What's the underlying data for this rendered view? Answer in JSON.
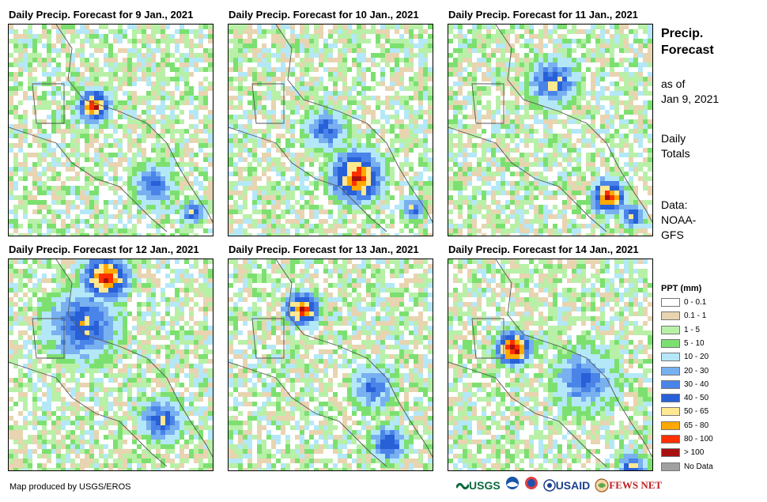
{
  "panels": [
    {
      "title": "Daily Precip. Forecast for 9 Jan., 2021"
    },
    {
      "title": "Daily Precip. Forecast for 10 Jan., 2021"
    },
    {
      "title": "Daily Precip. Forecast for 11 Jan., 2021"
    },
    {
      "title": "Daily Precip. Forecast for 12 Jan., 2021"
    },
    {
      "title": "Daily Precip. Forecast for 13 Jan., 2021"
    },
    {
      "title": "Daily Precip. Forecast for 14 Jan., 2021"
    }
  ],
  "sidebar": {
    "title_line1": "Precip.",
    "title_line2": "Forecast",
    "asof_line1": "as of",
    "asof_line2": "Jan 9, 2021",
    "totals_line1": "Daily",
    "totals_line2": "Totals",
    "data_line1": "Data:",
    "data_line2": "NOAA-",
    "data_line3": "GFS"
  },
  "legend": {
    "title": "PPT (mm)",
    "items": [
      {
        "label": "0 - 0.1",
        "color": "#ffffff"
      },
      {
        "label": "0.1 - 1",
        "color": "#e8d4b0"
      },
      {
        "label": "1 - 5",
        "color": "#b8f0a8"
      },
      {
        "label": "5 - 10",
        "color": "#7ce070"
      },
      {
        "label": "10 - 20",
        "color": "#b4e8f8"
      },
      {
        "label": "20 - 30",
        "color": "#78b0f0"
      },
      {
        "label": "30 - 40",
        "color": "#4a84e8"
      },
      {
        "label": "40 - 50",
        "color": "#2860d8"
      },
      {
        "label": "50 - 65",
        "color": "#ffe890"
      },
      {
        "label": "65 - 80",
        "color": "#ffa800"
      },
      {
        "label": "80 - 100",
        "color": "#ff3000"
      },
      {
        "label": "> 100",
        "color": "#a81010"
      },
      {
        "label": "No Data",
        "color": "#a0a0a0"
      }
    ]
  },
  "credit": "Map produced by USGS/EROS",
  "logos": {
    "usgs": "USGS",
    "usaid": "USAID",
    "fewsnet": "FEWS NET"
  }
}
